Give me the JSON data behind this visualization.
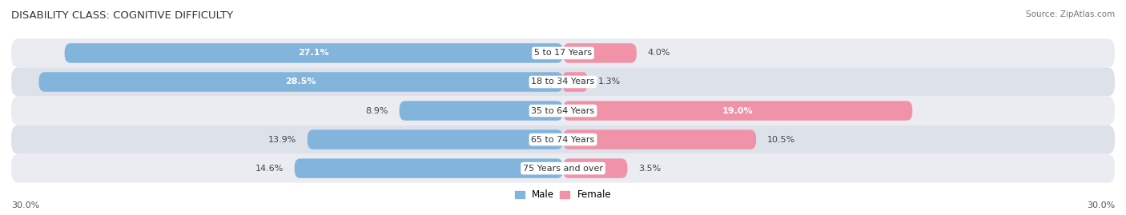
{
  "title": "DISABILITY CLASS: COGNITIVE DIFFICULTY",
  "source": "Source: ZipAtlas.com",
  "categories": [
    "5 to 17 Years",
    "18 to 34 Years",
    "35 to 64 Years",
    "65 to 74 Years",
    "75 Years and over"
  ],
  "male_values": [
    27.1,
    28.5,
    8.9,
    13.9,
    14.6
  ],
  "female_values": [
    4.0,
    1.3,
    19.0,
    10.5,
    3.5
  ],
  "male_color": "#82b4dc",
  "female_color": "#f093a8",
  "row_bg_colors": [
    "#e8ecf2",
    "#d8dfe8"
  ],
  "max_val": 30.0,
  "x_left_label": "30.0%",
  "x_right_label": "30.0%",
  "title_fontsize": 9.5,
  "label_fontsize": 8,
  "tick_fontsize": 8,
  "legend_fontsize": 8.5
}
